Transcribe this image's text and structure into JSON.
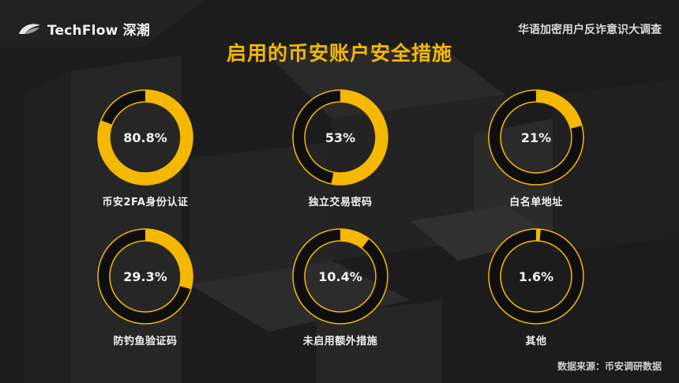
{
  "header": {
    "brand": "TechFlow 深潮",
    "subtitle": "华语加密用户反诈意识大调查"
  },
  "title": "启用的币安账户安全措施",
  "source": "数据来源：币安调研数据",
  "colors": {
    "accent": "#f5b800",
    "track": "#0e0e0e",
    "background": "#1c1c1c"
  },
  "chart_data": {
    "type": "pie",
    "title": "启用的币安账户安全措施",
    "categories": [
      "币安2FA身份认证",
      "独立交易密码",
      "白名单地址",
      "防钓鱼验证码",
      "未启用额外措施",
      "其他"
    ],
    "values": [
      80.8,
      53,
      21,
      29.3,
      10.4,
      1.6
    ],
    "value_labels": [
      "80.8%",
      "53%",
      "21%",
      "29.3%",
      "10.4%",
      "1.6%"
    ],
    "unit": "%"
  }
}
